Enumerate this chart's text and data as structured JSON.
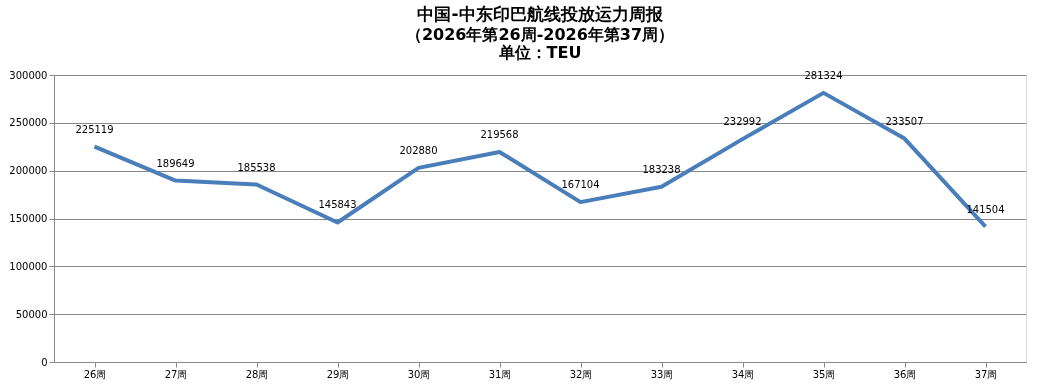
{
  "chart_data": {
    "type": "line",
    "title": "中国-中东印巴航线投放运力周报",
    "subtitle": "（2026年第26周-2026年第37周）",
    "annotations": [
      "单位：TEU"
    ],
    "categories": [
      "26周",
      "27周",
      "28周",
      "29周",
      "30周",
      "31周",
      "32周",
      "33周",
      "34周",
      "35周",
      "36周",
      "37周"
    ],
    "series": [
      {
        "color": "#4a7ebb",
        "values": [
          225119,
          189649,
          185538,
          145843,
          202880,
          219568,
          167104,
          183238,
          232992,
          281324,
          233507,
          141504
        ]
      }
    ],
    "ylim": [
      0,
      300000
    ],
    "yticks": [
      0,
      50000,
      100000,
      150000,
      200000,
      250000,
      300000
    ],
    "grid": "y",
    "legend": false,
    "marker": "none",
    "line_style": "solid",
    "data_labels": true
  }
}
